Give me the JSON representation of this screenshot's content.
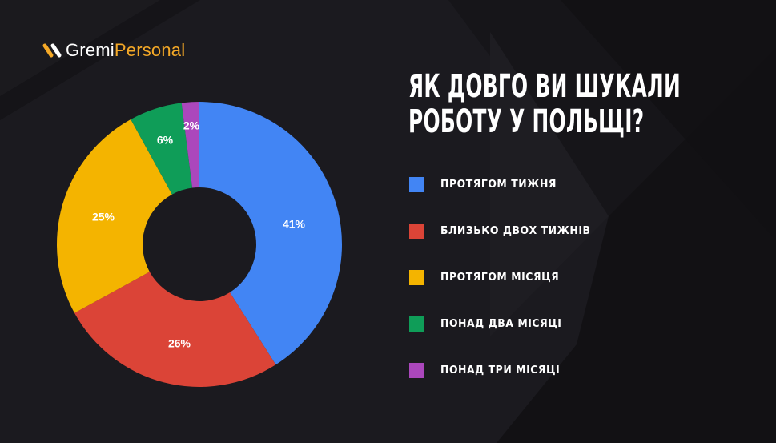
{
  "brand": {
    "part1": "Gremi",
    "part2": "Personal",
    "accent_color": "#f5a927"
  },
  "title": {
    "line1": "ЯК ДОВГО ВИ ШУКАЛИ",
    "line2": "РОБОТУ У ПОЛЬЩІ?"
  },
  "legend": [
    {
      "label": "ПРОТЯГОМ ТИЖНЯ",
      "color": "#4285f4"
    },
    {
      "label": "БЛИЗЬКО ДВОХ ТИЖНІВ",
      "color": "#db4437"
    },
    {
      "label": "ПРОТЯГОМ МІСЯЦЯ",
      "color": "#f4b400"
    },
    {
      "label": "ПОНАД ДВА МІСЯЦІ",
      "color": "#0f9d58"
    },
    {
      "label": "ПОНАД ТРИ МІСЯЦІ",
      "color": "#ab47bc"
    }
  ],
  "labels": {
    "s0": "41%",
    "s1": "26%",
    "s2": "25%",
    "s3": "6%",
    "s4": "2%"
  },
  "chart_data": {
    "type": "pie",
    "subtype": "donut",
    "title": "ЯК ДОВГО ВИ ШУКАЛИ РОБОТУ У ПОЛЬЩІ?",
    "categories": [
      "ПРОТЯГОМ ТИЖНЯ",
      "БЛИЗЬКО ДВОХ ТИЖНІВ",
      "ПРОТЯГОМ МІСЯЦЯ",
      "ПОНАД ДВА МІСЯЦІ",
      "ПОНАД ТРИ МІСЯЦІ"
    ],
    "values": [
      41,
      26,
      25,
      6,
      2
    ],
    "unit": "%",
    "colors": [
      "#4285f4",
      "#db4437",
      "#f4b400",
      "#0f9d58",
      "#ab47bc"
    ],
    "legend_position": "right",
    "start_angle": "top",
    "direction": "clockwise"
  }
}
